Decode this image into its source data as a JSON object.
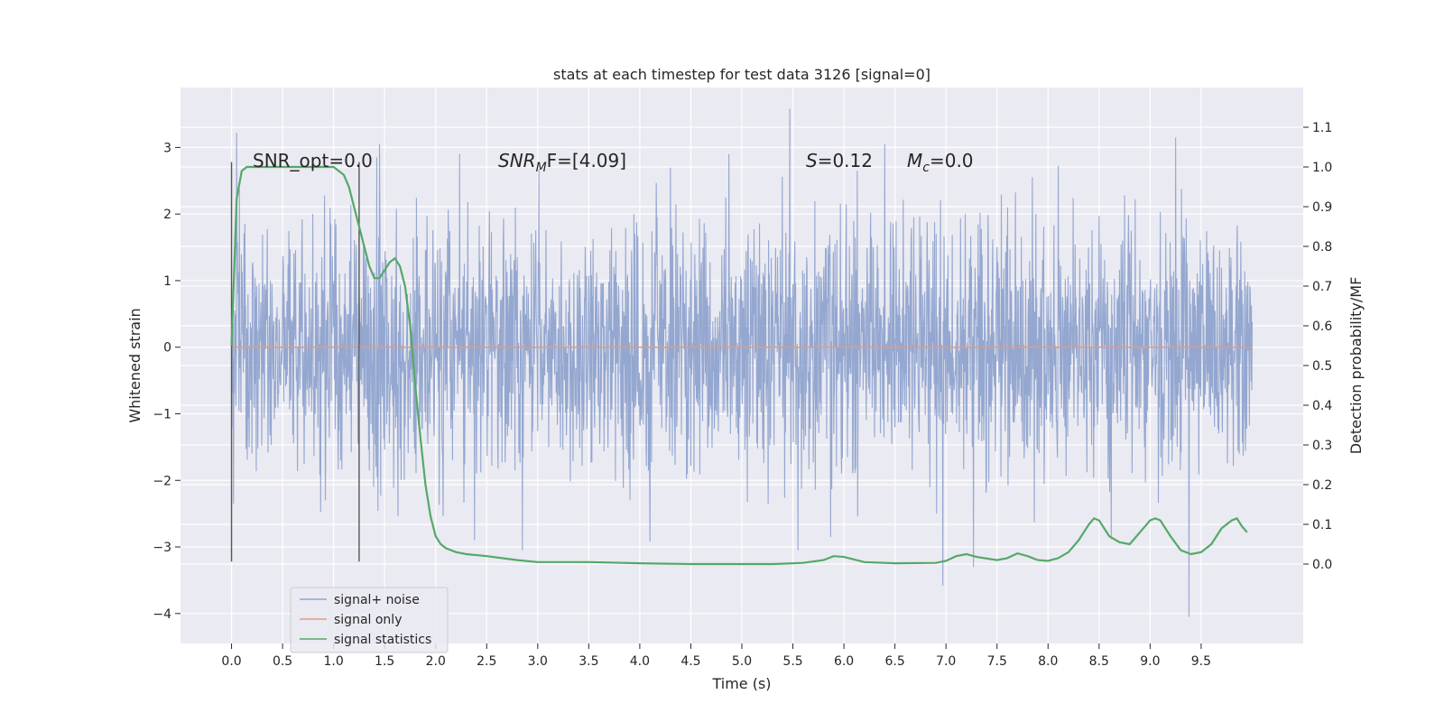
{
  "chart_data": {
    "type": "line",
    "title": "stats at each timestep for test data 3126 [signal=0]",
    "xlabel": "Time (s)",
    "ylabel": "Whitened strain",
    "y2label": "Detection probability/MF",
    "xlim": [
      -0.5,
      10.5
    ],
    "ylim": [
      -4.45,
      3.9
    ],
    "y2lim": [
      -0.2,
      1.2
    ],
    "xticks": [
      "0.0",
      "0.5",
      "1.0",
      "1.5",
      "2.0",
      "2.5",
      "3.0",
      "3.5",
      "4.0",
      "4.5",
      "5.0",
      "5.5",
      "6.0",
      "6.5",
      "7.0",
      "7.5",
      "8.0",
      "8.5",
      "9.0",
      "9.5"
    ],
    "yticks": [
      "3",
      "2",
      "1",
      "0",
      "−1",
      "−2",
      "−3",
      "−4"
    ],
    "y2ticks": [
      "1.1",
      "1.0",
      "0.9",
      "0.8",
      "0.7",
      "0.6",
      "0.5",
      "0.4",
      "0.3",
      "0.2",
      "0.1",
      "0.0"
    ],
    "grid": true,
    "legend_position": "lower-left",
    "annotations": {
      "snr_opt": "SNR_opt=0.0",
      "snr_mf_prefix": "SNR",
      "snr_mf_sub": "M",
      "snr_mf_suffix": "F=[4.09]",
      "s_prefix": "S",
      "s_value": "=0.12",
      "mc_prefix": "M",
      "mc_sub": "c",
      "mc_value": "=0.0"
    },
    "vlines": [
      0.0,
      1.25
    ],
    "vline_range": [
      -3.22,
      2.78
    ],
    "series": [
      {
        "name": "signal+ noise",
        "color": "#8fa3ce",
        "x_range": [
          0.0,
          10.0
        ],
        "envelope": "noise, approx |y| < 3.6",
        "spikes": [
          [
            0.05,
            3.22
          ],
          [
            1.45,
            3.05
          ],
          [
            5.47,
            3.58
          ],
          [
            6.4,
            3.05
          ],
          [
            9.25,
            3.15
          ],
          [
            9.38,
            -4.05
          ],
          [
            6.97,
            -3.58
          ],
          [
            7.27,
            -3.3
          ],
          [
            2.85,
            -3.05
          ],
          [
            4.1,
            -2.92
          ],
          [
            5.55,
            -3.05
          ],
          [
            5.87,
            -2.85
          ],
          [
            0.02,
            -2.35
          ]
        ]
      },
      {
        "name": "signal only",
        "color": "#e39b7b",
        "x": [
          0.0,
          10.0
        ],
        "values": [
          0.0,
          0.0
        ]
      },
      {
        "name": "signal statistics",
        "color": "#55a868",
        "axis": "right",
        "x": [
          0.0,
          0.05,
          0.1,
          0.15,
          0.2,
          0.3,
          0.4,
          0.5,
          0.6,
          0.7,
          0.8,
          0.9,
          1.0,
          1.05,
          1.1,
          1.15,
          1.2,
          1.25,
          1.3,
          1.35,
          1.4,
          1.45,
          1.5,
          1.55,
          1.6,
          1.65,
          1.7,
          1.75,
          1.8,
          1.85,
          1.9,
          1.95,
          2.0,
          2.05,
          2.1,
          2.2,
          2.3,
          2.5,
          2.8,
          3.0,
          3.5,
          4.0,
          4.5,
          5.0,
          5.3,
          5.6,
          5.8,
          5.9,
          6.0,
          6.2,
          6.5,
          6.9,
          7.0,
          7.1,
          7.2,
          7.3,
          7.5,
          7.6,
          7.7,
          7.8,
          7.9,
          8.0,
          8.1,
          8.2,
          8.3,
          8.4,
          8.45,
          8.5,
          8.6,
          8.7,
          8.8,
          8.9,
          9.0,
          9.05,
          9.1,
          9.2,
          9.3,
          9.4,
          9.5,
          9.6,
          9.7,
          9.8,
          9.85,
          9.9,
          9.95
        ],
        "values": [
          0.55,
          0.92,
          0.99,
          1.0,
          1.0,
          1.0,
          1.0,
          1.0,
          1.0,
          1.0,
          1.0,
          1.0,
          1.0,
          0.99,
          0.98,
          0.95,
          0.9,
          0.85,
          0.8,
          0.75,
          0.72,
          0.72,
          0.74,
          0.76,
          0.77,
          0.75,
          0.7,
          0.6,
          0.45,
          0.32,
          0.2,
          0.12,
          0.07,
          0.05,
          0.04,
          0.03,
          0.025,
          0.02,
          0.01,
          0.005,
          0.005,
          0.002,
          0.0,
          0.0,
          0.0,
          0.003,
          0.01,
          0.02,
          0.018,
          0.005,
          0.002,
          0.003,
          0.008,
          0.02,
          0.025,
          0.018,
          0.01,
          0.015,
          0.027,
          0.02,
          0.01,
          0.008,
          0.015,
          0.03,
          0.06,
          0.1,
          0.115,
          0.11,
          0.07,
          0.055,
          0.05,
          0.08,
          0.11,
          0.115,
          0.11,
          0.07,
          0.035,
          0.025,
          0.03,
          0.05,
          0.09,
          0.11,
          0.115,
          0.095,
          0.08
        ]
      }
    ]
  }
}
